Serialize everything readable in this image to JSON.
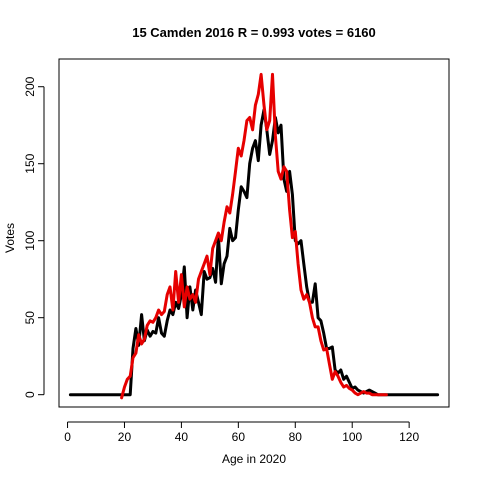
{
  "chart_data": {
    "type": "line",
    "title": "15 Camden 2016 R = 0.993 votes = 6160",
    "xlabel": "Age in 2020",
    "ylabel": "Votes",
    "xlim": [
      -3,
      134
    ],
    "ylim": [
      -8,
      218
    ],
    "xticks": [
      0,
      20,
      40,
      60,
      80,
      100,
      120
    ],
    "yticks": [
      0,
      50,
      100,
      150,
      200
    ],
    "grid": false,
    "series": [
      {
        "color": "#000000",
        "x": [
          1,
          2,
          3,
          4,
          5,
          6,
          7,
          8,
          9,
          10,
          11,
          12,
          13,
          14,
          15,
          16,
          17,
          18,
          19,
          20,
          21,
          22,
          23,
          24,
          25,
          26,
          27,
          28,
          29,
          30,
          31,
          32,
          33,
          34,
          35,
          36,
          37,
          38,
          39,
          40,
          41,
          42,
          43,
          44,
          45,
          46,
          47,
          48,
          49,
          50,
          51,
          52,
          53,
          54,
          55,
          56,
          57,
          58,
          59,
          60,
          61,
          62,
          63,
          64,
          65,
          66,
          67,
          68,
          69,
          70,
          71,
          72,
          73,
          74,
          75,
          76,
          77,
          78,
          79,
          80,
          81,
          82,
          83,
          84,
          85,
          86,
          87,
          88,
          89,
          90,
          91,
          92,
          93,
          94,
          95,
          96,
          97,
          98,
          99,
          100,
          101,
          102,
          103,
          104,
          105,
          106,
          107,
          108,
          109,
          110,
          111,
          112,
          113,
          114,
          115,
          116,
          117,
          118,
          119,
          120,
          121,
          122,
          123,
          124,
          125,
          126,
          127,
          128,
          129,
          130
        ],
        "y": [
          0,
          0,
          0,
          0,
          0,
          0,
          0,
          0,
          0,
          0,
          0,
          0,
          0,
          0,
          0,
          0,
          0,
          0,
          0,
          0,
          0,
          0,
          30,
          43,
          32,
          52,
          35,
          42,
          38,
          41,
          40,
          50,
          40,
          38,
          48,
          55,
          52,
          60,
          56,
          65,
          83,
          50,
          70,
          55,
          68,
          60,
          52,
          80,
          75,
          76,
          82,
          73,
          103,
          72,
          85,
          90,
          108,
          100,
          102,
          120,
          135,
          132,
          128,
          150,
          160,
          165,
          152,
          175,
          185,
          172,
          156,
          165,
          180,
          170,
          175,
          140,
          132,
          145,
          130,
          100,
          98,
          100,
          85,
          70,
          60,
          60,
          72,
          50,
          48,
          40,
          30,
          30,
          31,
          16,
          14,
          16,
          10,
          12,
          8,
          4,
          5,
          3,
          2,
          1,
          2,
          3,
          2,
          1,
          0,
          0,
          0,
          0,
          0,
          0,
          0,
          0,
          0,
          0,
          0,
          0,
          0,
          0,
          0,
          0,
          0,
          0,
          0,
          0,
          0,
          0
        ]
      },
      {
        "color": "#e60000",
        "x": [
          19,
          20,
          21,
          22,
          23,
          24,
          25,
          26,
          27,
          28,
          29,
          30,
          31,
          32,
          33,
          34,
          35,
          36,
          37,
          38,
          39,
          40,
          41,
          42,
          43,
          44,
          45,
          46,
          47,
          48,
          49,
          50,
          51,
          52,
          53,
          54,
          55,
          56,
          57,
          58,
          59,
          60,
          61,
          62,
          63,
          64,
          65,
          66,
          67,
          68,
          69,
          70,
          71,
          72,
          73,
          74,
          75,
          76,
          77,
          78,
          79,
          80,
          81,
          82,
          83,
          84,
          85,
          86,
          87,
          88,
          89,
          90,
          91,
          92,
          93,
          94,
          95,
          96,
          97,
          98,
          99,
          100,
          101,
          102,
          103,
          104,
          105,
          106,
          107,
          108,
          109,
          110,
          111,
          112
        ],
        "y": [
          -2,
          5,
          10,
          12,
          24,
          27,
          39,
          33,
          36,
          45,
          48,
          47,
          50,
          55,
          52,
          54,
          65,
          70,
          55,
          80,
          60,
          78,
          57,
          70,
          62,
          65,
          60,
          75,
          80,
          85,
          90,
          78,
          95,
          100,
          105,
          100,
          112,
          122,
          118,
          130,
          145,
          160,
          155,
          165,
          178,
          180,
          172,
          188,
          195,
          208,
          188,
          172,
          178,
          208,
          168,
          145,
          140,
          148,
          145,
          120,
          102,
          106,
          85,
          68,
          62,
          65,
          60,
          50,
          44,
          44,
          35,
          29,
          30,
          20,
          10,
          15,
          12,
          8,
          5,
          6,
          4,
          3,
          1,
          0,
          1,
          2,
          1,
          1,
          0,
          0,
          0,
          0,
          0,
          0
        ]
      }
    ]
  }
}
